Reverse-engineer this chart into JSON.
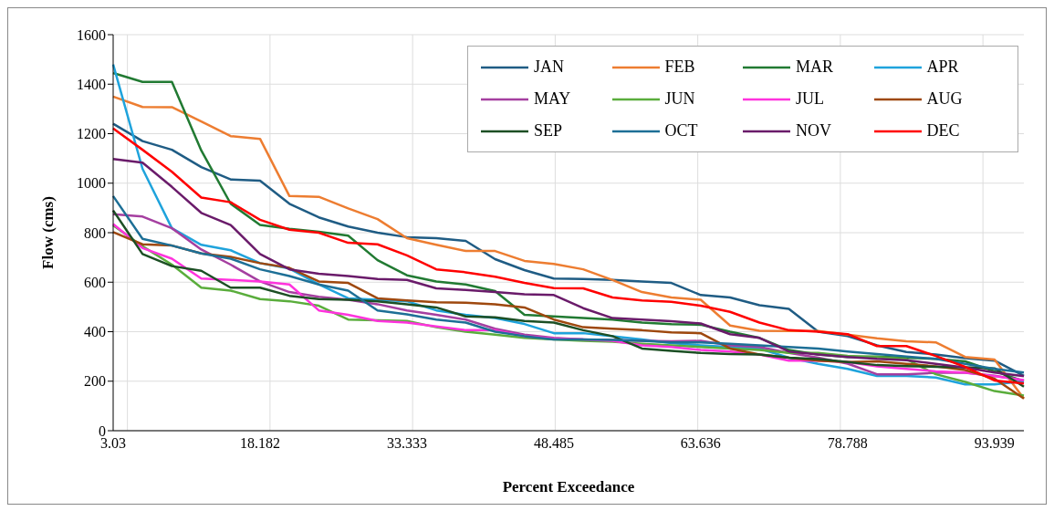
{
  "chart_data": {
    "type": "line",
    "xlabel": "Percent Exceedance",
    "ylabel": "Flow (cms)",
    "categories": [
      "3.03",
      null,
      null,
      null,
      null,
      "18.182",
      null,
      null,
      null,
      null,
      "33.333",
      null,
      null,
      null,
      null,
      "48.485",
      null,
      null,
      null,
      null,
      "63.636",
      null,
      null,
      null,
      null,
      "78.788",
      null,
      null,
      null,
      null,
      "93.939",
      null
    ],
    "ylim": [
      0,
      1600
    ],
    "yticks": [
      0,
      200,
      400,
      600,
      800,
      1000,
      1200,
      1400,
      1600
    ],
    "grid": true,
    "legend": "top right",
    "line_style": "solid",
    "series": [
      {
        "name": "JAN",
        "color": "#1f5c84",
        "values": [
          1240,
          1170,
          1135,
          1065,
          1015,
          1010,
          917,
          862,
          825,
          800,
          782,
          778,
          767,
          693,
          649,
          615,
          613,
          609,
          603,
          597,
          548,
          538,
          507,
          492,
          400,
          382,
          345,
          318,
          308,
          293,
          283,
          222
        ]
      },
      {
        "name": "FEB",
        "color": "#ed7d31",
        "values": [
          1350,
          1308,
          1307,
          1249,
          1190,
          1179,
          948,
          945,
          898,
          855,
          778,
          751,
          726,
          726,
          686,
          674,
          652,
          609,
          560,
          538,
          529,
          425,
          404,
          403,
          403,
          388,
          373,
          361,
          357,
          298,
          288,
          130
        ]
      },
      {
        "name": "MAR",
        "color": "#217a32",
        "values": [
          1445,
          1409,
          1409,
          1132,
          917,
          831,
          816,
          804,
          788,
          689,
          628,
          603,
          591,
          564,
          468,
          462,
          455,
          449,
          437,
          430,
          428,
          400,
          375,
          326,
          308,
          298,
          300,
          295,
          290,
          280,
          240,
          200
        ]
      },
      {
        "name": "APR",
        "color": "#1fa3dc",
        "values": [
          1480,
          1058,
          818,
          751,
          729,
          677,
          655,
          591,
          535,
          529,
          523,
          486,
          468,
          455,
          431,
          394,
          394,
          382,
          369,
          354,
          345,
          338,
          332,
          295,
          270,
          250,
          221,
          221,
          215,
          187,
          187,
          200
        ]
      },
      {
        "name": "MAY",
        "color": "#a53fa0",
        "values": [
          875,
          865,
          818,
          732,
          671,
          603,
          560,
          541,
          529,
          511,
          486,
          468,
          449,
          412,
          388,
          375,
          369,
          367,
          363,
          361,
          363,
          345,
          338,
          314,
          295,
          271,
          228,
          228,
          234,
          234,
          222,
          203
        ]
      },
      {
        "name": "JUN",
        "color": "#5aad3c",
        "values": [
          830,
          745,
          671,
          578,
          566,
          532,
          523,
          505,
          449,
          446,
          443,
          418,
          400,
          388,
          375,
          369,
          363,
          359,
          351,
          345,
          338,
          332,
          326,
          314,
          314,
          302,
          298,
          289,
          228,
          197,
          160,
          142
        ]
      },
      {
        "name": "JUL",
        "color": "#ff33dd",
        "values": [
          835,
          738,
          695,
          615,
          609,
          603,
          591,
          486,
          468,
          443,
          437,
          421,
          406,
          406,
          382,
          372,
          369,
          363,
          345,
          338,
          326,
          320,
          308,
          283,
          283,
          277,
          260,
          250,
          240,
          235,
          220,
          205
        ]
      },
      {
        "name": "AUG",
        "color": "#9e480e",
        "values": [
          802,
          753,
          748,
          716,
          702,
          677,
          658,
          603,
          597,
          535,
          526,
          519,
          517,
          511,
          498,
          449,
          418,
          412,
          406,
          397,
          394,
          332,
          308,
          295,
          283,
          277,
          280,
          270,
          260,
          245,
          210,
          130
        ]
      },
      {
        "name": "SEP",
        "color": "#1c4f24",
        "values": [
          890,
          714,
          665,
          646,
          578,
          578,
          545,
          532,
          529,
          523,
          511,
          498,
          462,
          458,
          443,
          437,
          406,
          382,
          332,
          323,
          314,
          310,
          308,
          295,
          289,
          277,
          265,
          261,
          258,
          256,
          252,
          178
        ]
      },
      {
        "name": "OCT",
        "color": "#1d6f96",
        "values": [
          948,
          775,
          748,
          716,
          695,
          652,
          625,
          591,
          566,
          486,
          470,
          449,
          437,
          400,
          382,
          369,
          369,
          367,
          363,
          357,
          357,
          351,
          345,
          338,
          332,
          320,
          310,
          300,
          290,
          270,
          250,
          235
        ]
      },
      {
        "name": "NOV",
        "color": "#6a1b6a",
        "values": [
          1098,
          1083,
          985,
          880,
          831,
          714,
          652,
          634,
          625,
          613,
          609,
          575,
          569,
          560,
          551,
          548,
          495,
          455,
          449,
          442,
          433,
          390,
          375,
          320,
          308,
          298,
          290,
          285,
          270,
          255,
          235,
          220
        ]
      },
      {
        "name": "DEC",
        "color": "#ff0000",
        "values": [
          1221,
          1135,
          1046,
          942,
          923,
          852,
          812,
          800,
          759,
          753,
          708,
          652,
          640,
          622,
          597,
          576,
          575,
          538,
          526,
          521,
          505,
          480,
          437,
          406,
          400,
          390,
          342,
          342,
          302,
          258,
          203,
          191
        ]
      }
    ]
  }
}
